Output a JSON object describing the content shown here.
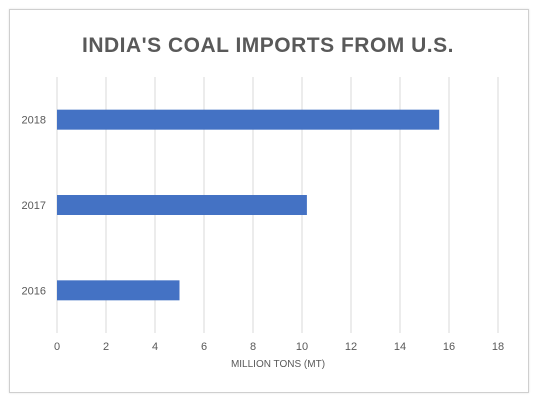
{
  "chart_data": {
    "type": "bar",
    "orientation": "horizontal",
    "title": "INDIA'S COAL IMPORTS FROM U.S.",
    "xlabel": "MILLION TONS (MT)",
    "ylabel": "",
    "categories": [
      "2016",
      "2017",
      "2018"
    ],
    "values": [
      5.0,
      10.2,
      15.6
    ],
    "xlim": [
      0,
      18
    ],
    "xticks": [
      0,
      2,
      4,
      6,
      8,
      10,
      12,
      14,
      16,
      18
    ],
    "grid": "vertical",
    "legend": "none",
    "bar_color": "#4472c4",
    "grid_color": "#d9d9d9"
  }
}
